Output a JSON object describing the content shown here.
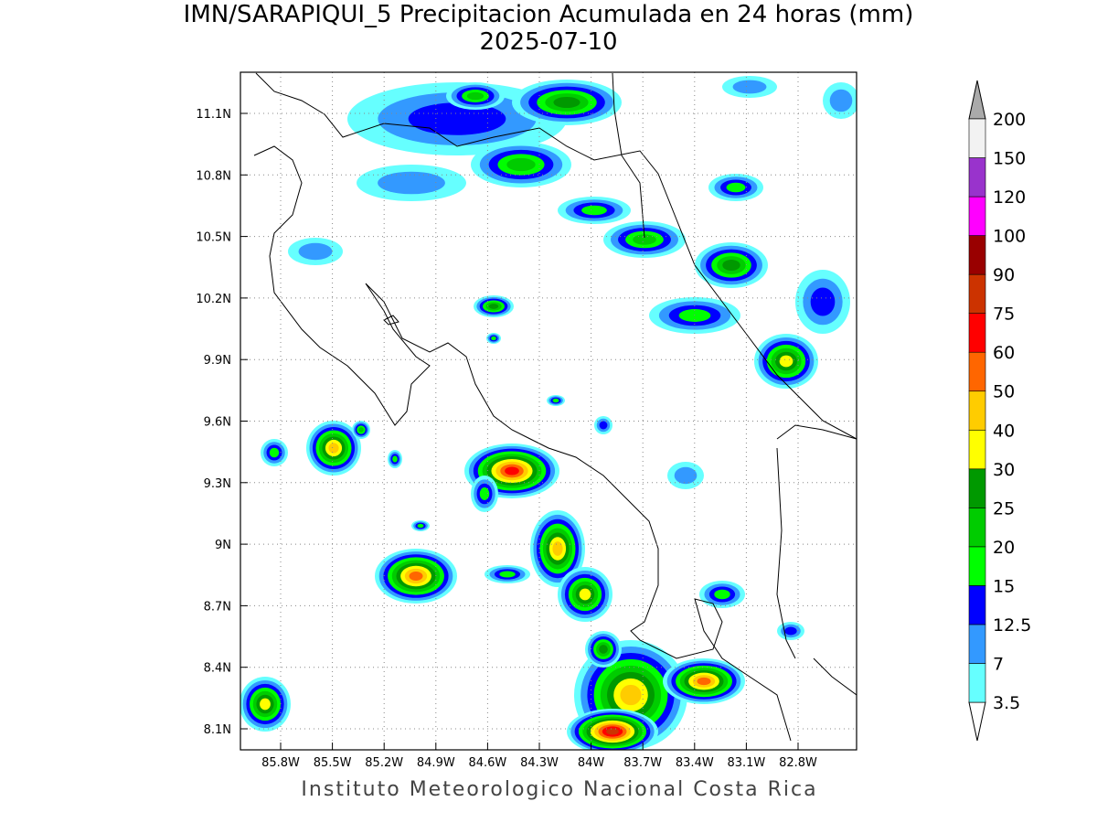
{
  "title": "IMN/SARAPIQUI_5 Precipitacion Acumulada en 24 horas (mm)",
  "date": "2025-07-10",
  "map": {
    "lon_ticks": [
      "85.8W",
      "85.5W",
      "85.2W",
      "84.9W",
      "84.6W",
      "84.3W",
      "84W",
      "83.7W",
      "83.4W",
      "83.1W",
      "82.8W"
    ],
    "lat_ticks": [
      "11.1N",
      "10.8N",
      "10.5N",
      "10.2N",
      "9.9N",
      "9.6N",
      "9.3N",
      "9N",
      "8.7N",
      "8.4N",
      "8.1N"
    ]
  },
  "colorbar": {
    "levels": [
      3.5,
      7,
      12.5,
      15,
      20,
      25,
      30,
      40,
      50,
      60,
      75,
      90,
      100,
      120,
      150,
      200
    ],
    "band_colors": [
      "#66ffff",
      "#3399ff",
      "#0000ff",
      "#00ff00",
      "#00cc00",
      "#009900",
      "#ffff00",
      "#ffcc00",
      "#ff6600",
      "#ff0000",
      "#cc3300",
      "#990000",
      "#ff00ff",
      "#9933cc",
      "#f2f2f2"
    ]
  },
  "footer": "Instituto Meteorologico Nacional Costa Rica"
}
